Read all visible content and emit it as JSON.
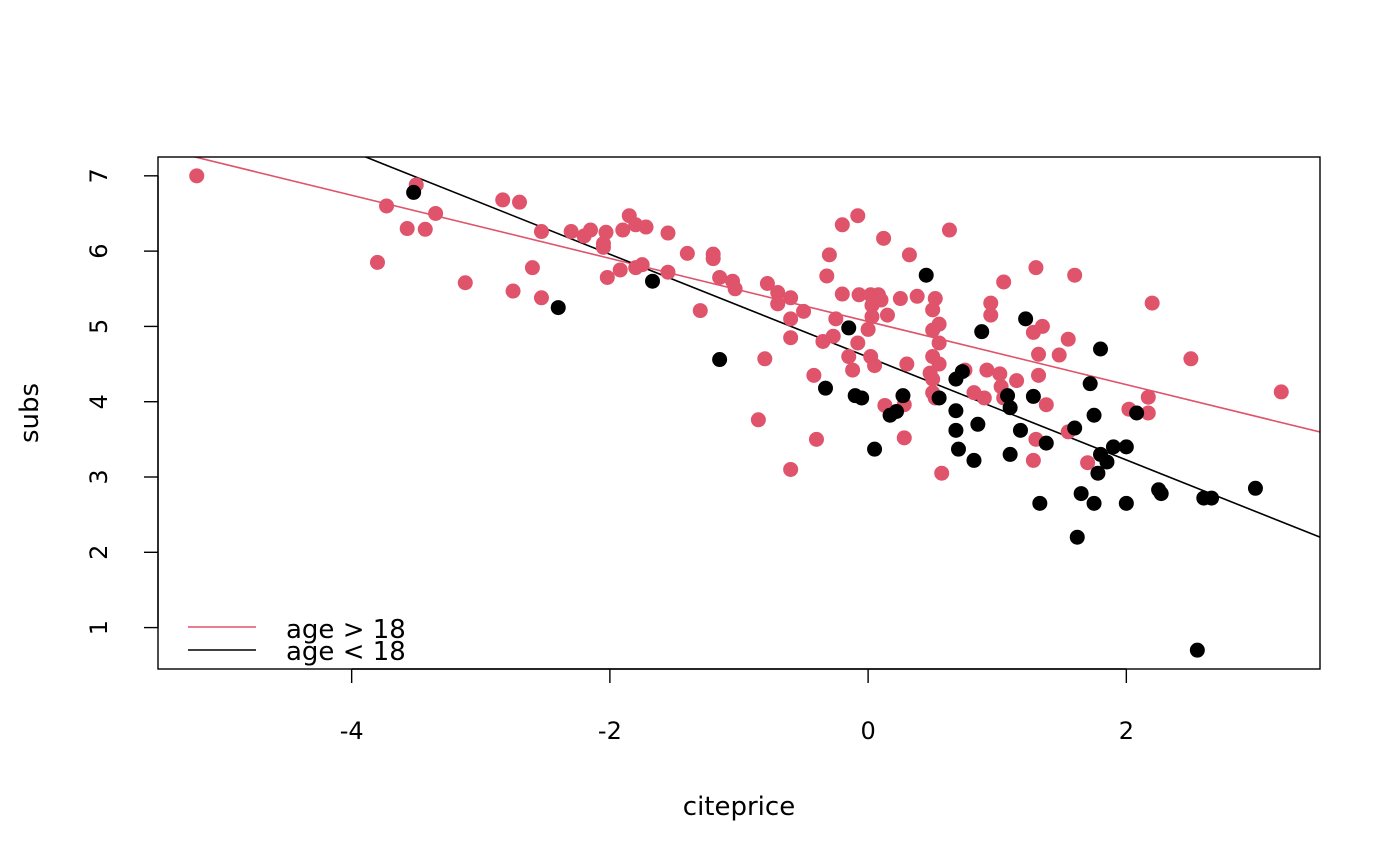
{
  "chart_data": {
    "type": "scatter",
    "title": "",
    "xlabel": "citeprice",
    "ylabel": "subs",
    "xlim": [
      -5.5,
      3.5
    ],
    "ylim": [
      0.45,
      7.25
    ],
    "xticks": [
      -4,
      -2,
      0,
      2
    ],
    "yticks": [
      1,
      2,
      3,
      4,
      5,
      6,
      7
    ],
    "xtick_labels": [
      "-4",
      "-2",
      "0",
      "2"
    ],
    "ytick_labels": [
      "1",
      "2",
      "3",
      "4",
      "5",
      "6",
      "7"
    ],
    "legend_position": "bottom-left",
    "series": [
      {
        "name": "age > 18",
        "color": "#DF536B",
        "points": [
          [
            -5.2,
            7.0
          ],
          [
            -3.73,
            6.6
          ],
          [
            -3.5,
            6.88
          ],
          [
            -3.35,
            6.5
          ],
          [
            -3.43,
            6.29
          ],
          [
            -3.57,
            6.3
          ],
          [
            -3.8,
            5.85
          ],
          [
            -3.12,
            5.58
          ],
          [
            -2.83,
            6.68
          ],
          [
            -2.7,
            6.65
          ],
          [
            -2.53,
            6.26
          ],
          [
            -2.6,
            5.78
          ],
          [
            -2.75,
            5.47
          ],
          [
            -2.53,
            5.38
          ],
          [
            -2.3,
            6.26
          ],
          [
            -2.2,
            6.2
          ],
          [
            -2.15,
            6.28
          ],
          [
            -2.03,
            6.25
          ],
          [
            -2.05,
            6.1
          ],
          [
            -2.05,
            6.05
          ],
          [
            -2.02,
            5.65
          ],
          [
            -1.85,
            6.47
          ],
          [
            -1.8,
            6.35
          ],
          [
            -1.9,
            6.28
          ],
          [
            -1.72,
            6.32
          ],
          [
            -1.75,
            5.82
          ],
          [
            -1.8,
            5.78
          ],
          [
            -1.92,
            5.75
          ],
          [
            -1.55,
            6.24
          ],
          [
            -1.4,
            5.97
          ],
          [
            -1.55,
            5.72
          ],
          [
            -1.3,
            5.21
          ],
          [
            -1.2,
            5.96
          ],
          [
            -1.2,
            5.9
          ],
          [
            -1.15,
            5.65
          ],
          [
            -1.05,
            5.6
          ],
          [
            -1.03,
            5.5
          ],
          [
            -0.78,
            5.57
          ],
          [
            -0.7,
            5.45
          ],
          [
            -0.6,
            5.38
          ],
          [
            -0.7,
            5.3
          ],
          [
            -0.6,
            5.1
          ],
          [
            -0.5,
            5.2
          ],
          [
            -0.6,
            4.85
          ],
          [
            -0.8,
            4.57
          ],
          [
            -0.85,
            3.76
          ],
          [
            -0.4,
            3.5
          ],
          [
            -0.6,
            3.1
          ],
          [
            -0.42,
            4.35
          ],
          [
            -0.35,
            4.8
          ],
          [
            -0.2,
            6.35
          ],
          [
            -0.3,
            5.95
          ],
          [
            -0.32,
            5.67
          ],
          [
            -0.2,
            5.43
          ],
          [
            -0.25,
            5.1
          ],
          [
            -0.27,
            4.87
          ],
          [
            -0.15,
            4.6
          ],
          [
            -0.12,
            4.42
          ],
          [
            -0.08,
            6.47
          ],
          [
            -0.07,
            5.42
          ],
          [
            -0.08,
            4.78
          ],
          [
            0.02,
            5.42
          ],
          [
            0.03,
            5.28
          ],
          [
            0.03,
            5.13
          ],
          [
            0.0,
            4.96
          ],
          [
            0.08,
            5.42
          ],
          [
            0.1,
            5.35
          ],
          [
            0.12,
            6.17
          ],
          [
            0.15,
            5.15
          ],
          [
            0.02,
            4.6
          ],
          [
            0.05,
            4.48
          ],
          [
            0.13,
            3.95
          ],
          [
            0.25,
            5.37
          ],
          [
            0.3,
            4.5
          ],
          [
            0.32,
            5.95
          ],
          [
            0.38,
            5.4
          ],
          [
            0.28,
            3.96
          ],
          [
            0.28,
            3.52
          ],
          [
            0.5,
            5.22
          ],
          [
            0.52,
            5.37
          ],
          [
            0.55,
            5.03
          ],
          [
            0.5,
            4.95
          ],
          [
            0.55,
            4.78
          ],
          [
            0.5,
            4.6
          ],
          [
            0.55,
            4.5
          ],
          [
            0.48,
            4.38
          ],
          [
            0.5,
            4.3
          ],
          [
            0.5,
            4.12
          ],
          [
            0.52,
            4.05
          ],
          [
            0.63,
            6.28
          ],
          [
            0.57,
            3.05
          ],
          [
            0.75,
            4.42
          ],
          [
            0.82,
            4.12
          ],
          [
            0.9,
            4.05
          ],
          [
            0.92,
            4.42
          ],
          [
            0.95,
            5.31
          ],
          [
            0.95,
            5.15
          ],
          [
            1.02,
            4.37
          ],
          [
            1.03,
            4.2
          ],
          [
            1.05,
            4.05
          ],
          [
            1.05,
            5.59
          ],
          [
            1.15,
            4.28
          ],
          [
            1.3,
            5.78
          ],
          [
            1.28,
            4.92
          ],
          [
            1.35,
            5.0
          ],
          [
            1.32,
            4.63
          ],
          [
            1.32,
            4.35
          ],
          [
            1.38,
            3.96
          ],
          [
            1.3,
            3.5
          ],
          [
            1.28,
            3.22
          ],
          [
            1.48,
            4.62
          ],
          [
            1.55,
            4.83
          ],
          [
            1.6,
            5.68
          ],
          [
            1.55,
            3.6
          ],
          [
            1.7,
            3.19
          ],
          [
            2.02,
            3.9
          ],
          [
            2.17,
            4.06
          ],
          [
            2.17,
            3.85
          ],
          [
            2.2,
            5.31
          ],
          [
            2.5,
            4.57
          ],
          [
            3.2,
            4.13
          ]
        ]
      },
      {
        "name": "age < 18",
        "color": "#000000",
        "points": [
          [
            -3.52,
            6.78
          ],
          [
            -2.4,
            5.25
          ],
          [
            -1.67,
            5.6
          ],
          [
            -1.15,
            4.56
          ],
          [
            -0.33,
            4.18
          ],
          [
            -0.15,
            4.98
          ],
          [
            -0.1,
            4.08
          ],
          [
            -0.05,
            4.05
          ],
          [
            0.05,
            3.37
          ],
          [
            0.17,
            3.82
          ],
          [
            0.22,
            3.87
          ],
          [
            0.27,
            4.08
          ],
          [
            0.45,
            5.68
          ],
          [
            0.55,
            4.05
          ],
          [
            0.68,
            4.3
          ],
          [
            0.68,
            3.88
          ],
          [
            0.68,
            3.62
          ],
          [
            0.73,
            4.4
          ],
          [
            0.7,
            3.37
          ],
          [
            0.82,
            3.22
          ],
          [
            0.85,
            3.7
          ],
          [
            0.88,
            4.93
          ],
          [
            1.08,
            4.08
          ],
          [
            1.1,
            3.92
          ],
          [
            1.1,
            3.3
          ],
          [
            1.18,
            3.62
          ],
          [
            1.22,
            5.1
          ],
          [
            1.28,
            4.07
          ],
          [
            1.33,
            2.65
          ],
          [
            1.38,
            3.45
          ],
          [
            1.6,
            3.65
          ],
          [
            1.62,
            2.2
          ],
          [
            1.65,
            2.78
          ],
          [
            1.72,
            4.24
          ],
          [
            1.75,
            3.82
          ],
          [
            1.8,
            4.7
          ],
          [
            1.75,
            2.65
          ],
          [
            1.78,
            3.05
          ],
          [
            1.8,
            3.3
          ],
          [
            1.85,
            3.2
          ],
          [
            1.9,
            3.4
          ],
          [
            2.0,
            3.4
          ],
          [
            2.0,
            2.65
          ],
          [
            2.08,
            3.85
          ],
          [
            2.25,
            2.83
          ],
          [
            2.27,
            2.78
          ],
          [
            2.55,
            0.7
          ],
          [
            2.6,
            2.72
          ],
          [
            2.66,
            2.72
          ],
          [
            3.0,
            2.85
          ]
        ]
      }
    ],
    "fit_lines": [
      {
        "name": "age > 18",
        "color": "#DF536B",
        "intercept": 5.065,
        "slope": -0.4192
      },
      {
        "name": "age < 18",
        "color": "#000000",
        "intercept": 4.592,
        "slope": -0.6831
      }
    ]
  }
}
